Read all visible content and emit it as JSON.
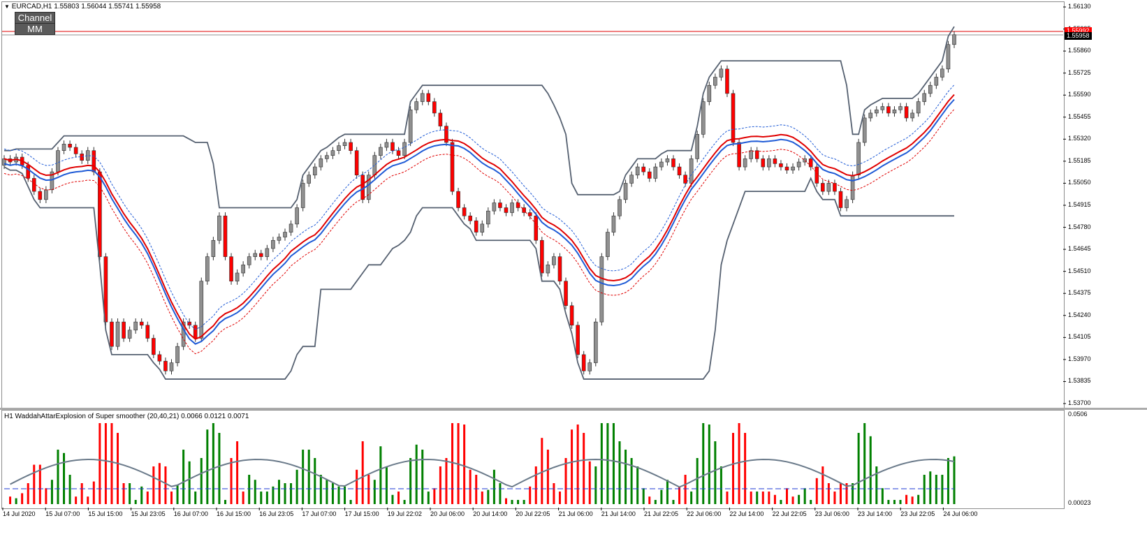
{
  "chart": {
    "symbol_header": "EURCAD,H1",
    "ohlc_header": "1.55803 1.56044 1.55741 1.55958",
    "buttons": {
      "channel": "Channel",
      "mm": "MM"
    },
    "current_price": "1.55958",
    "ask_price": "1.55992",
    "colors": {
      "bull": "#404040",
      "bear": "#ff0000",
      "channel": "#556070",
      "mid_blue": "#1f5bd6",
      "mid_red": "#e00000",
      "wae_up": "#008000",
      "wae_down": "#ff0000"
    }
  },
  "price_axis": [
    "1.56130",
    "1.55995",
    "1.55860",
    "1.55725",
    "1.55590",
    "1.55455",
    "1.55320",
    "1.55185",
    "1.55050",
    "1.54915",
    "1.54780",
    "1.54645",
    "1.54510",
    "1.54375",
    "1.54240",
    "1.54105",
    "1.53970",
    "1.53835",
    "1.53700"
  ],
  "indicator": {
    "header": "H1  WaddahAttarExplosion of Super smoother (20,40,21) 0.0066 0.0121 0.0071",
    "axis_top": "0.0506",
    "axis_bottom": "0.00023"
  },
  "time_axis": [
    "14 Jul 2020",
    "15 Jul 07:00",
    "15 Jul 15:00",
    "15 Jul 23:05",
    "16 Jul 07:00",
    "16 Jul 15:00",
    "16 Jul 23:05",
    "17 Jul 07:00",
    "17 Jul 15:00",
    "19 Jul 22:02",
    "20 Jul 06:00",
    "20 Jul 14:00",
    "20 Jul 22:05",
    "21 Jul 06:00",
    "21 Jul 14:00",
    "21 Jul 22:05",
    "22 Jul 06:00",
    "22 Jul 14:00",
    "22 Jul 22:05",
    "23 Jul 06:00",
    "23 Jul 14:00",
    "23 Jul 22:05",
    "24 Jul 06:00"
  ],
  "chart_data": {
    "type": "candlestick",
    "title": "EURCAD,H1",
    "ylim": [
      1.537,
      1.5613
    ],
    "closes": [
      1.552,
      1.5518,
      1.5521,
      1.5516,
      1.5508,
      1.55,
      1.5495,
      1.5501,
      1.5512,
      1.5525,
      1.5529,
      1.5527,
      1.5523,
      1.5519,
      1.5525,
      1.5512,
      1.546,
      1.542,
      1.5405,
      1.542,
      1.541,
      1.5415,
      1.542,
      1.5418,
      1.541,
      1.54,
      1.5396,
      1.539,
      1.5395,
      1.5405,
      1.542,
      1.5418,
      1.541,
      1.5445,
      1.546,
      1.547,
      1.5485,
      1.546,
      1.5445,
      1.545,
      1.5455,
      1.546,
      1.5462,
      1.546,
      1.5465,
      1.547,
      1.5472,
      1.5475,
      1.548,
      1.549,
      1.5505,
      1.551,
      1.5515,
      1.552,
      1.5522,
      1.5525,
      1.5528,
      1.553,
      1.5525,
      1.551,
      1.5495,
      1.551,
      1.5522,
      1.5527,
      1.553,
      1.5525,
      1.5522,
      1.553,
      1.555,
      1.5555,
      1.556,
      1.5555,
      1.5548,
      1.554,
      1.553,
      1.55,
      1.549,
      1.5485,
      1.5482,
      1.5475,
      1.548,
      1.5488,
      1.5493,
      1.549,
      1.5487,
      1.5493,
      1.549,
      1.5487,
      1.5485,
      1.547,
      1.545,
      1.5455,
      1.546,
      1.5445,
      1.543,
      1.5418,
      1.54,
      1.539,
      1.5395,
      1.542,
      1.546,
      1.5475,
      1.5485,
      1.5495,
      1.5505,
      1.551,
      1.5515,
      1.5512,
      1.5508,
      1.5515,
      1.5518,
      1.552,
      1.5515,
      1.551,
      1.5505,
      1.552,
      1.5535,
      1.5555,
      1.5565,
      1.557,
      1.5575,
      1.556,
      1.553,
      1.5515,
      1.552,
      1.5525,
      1.552,
      1.5515,
      1.552,
      1.5517,
      1.5515,
      1.5513,
      1.5515,
      1.5518,
      1.552,
      1.5515,
      1.5505,
      1.55,
      1.5505,
      1.55,
      1.549,
      1.5495,
      1.551,
      1.553,
      1.5545,
      1.5548,
      1.555,
      1.5552,
      1.5548,
      1.555,
      1.5552,
      1.5545,
      1.5548,
      1.5555,
      1.556,
      1.5565,
      1.557,
      1.5575,
      1.559,
      1.5596
    ]
  }
}
